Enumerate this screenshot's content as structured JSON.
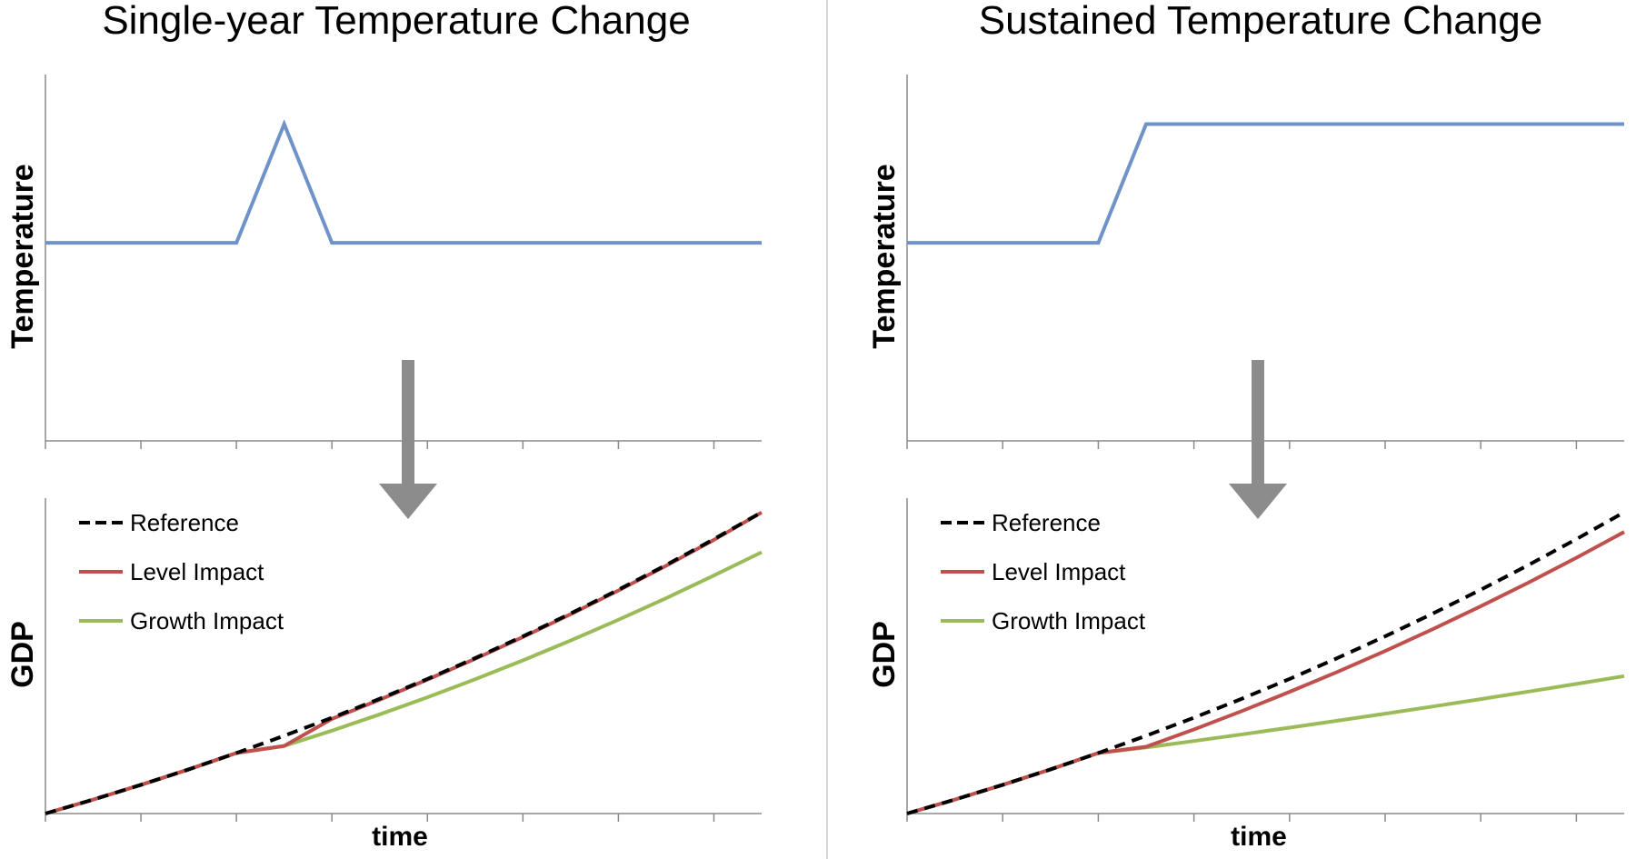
{
  "panels": [
    {
      "title": "Single-year Temperature Change",
      "temperature": {
        "ylabel": "Temperature",
        "x": [
          0,
          4,
          5,
          6,
          15
        ],
        "y": [
          1.0,
          1.0,
          1.6,
          1.0,
          1.0
        ],
        "color": "#6f93c9"
      },
      "gdp": {
        "ylabel": "GDP",
        "xlabel": "time",
        "x": [
          0,
          1,
          2,
          3,
          4,
          5,
          6,
          7,
          8,
          9,
          10,
          11,
          12,
          13,
          14,
          15
        ],
        "series": [
          {
            "name": "Reference",
            "color": "#000000",
            "dash": "12,8",
            "values": [
              0,
              0.93,
              1.91,
              2.94,
              4.03,
              5.18,
              6.38,
              7.64,
              8.96,
              10.35,
              11.8,
              13.32,
              14.9,
              16.55,
              18.27,
              20.06
            ]
          },
          {
            "name": "Level Impact",
            "color": "#c0504d",
            "dash": "",
            "values": [
              0,
              0.93,
              1.91,
              2.94,
              4.03,
              4.5,
              6.3,
              7.58,
              8.92,
              10.3,
              11.75,
              13.27,
              14.85,
              16.5,
              18.22,
              20.05
            ]
          },
          {
            "name": "Growth Impact",
            "color": "#9bbb59",
            "dash": "",
            "values": [
              0,
              0.93,
              1.91,
              2.94,
              4.03,
              4.5,
              5.52,
              6.6,
              7.74,
              8.94,
              10.2,
              11.52,
              12.9,
              14.34,
              15.85,
              17.4
            ]
          }
        ]
      }
    },
    {
      "title": "Sustained Temperature Change",
      "temperature": {
        "ylabel": "Temperature",
        "x": [
          0,
          4,
          5,
          15
        ],
        "y": [
          1.0,
          1.0,
          1.6,
          1.6
        ],
        "color": "#6f93c9"
      },
      "gdp": {
        "ylabel": "GDP",
        "xlabel": "time",
        "x": [
          0,
          1,
          2,
          3,
          4,
          5,
          6,
          7,
          8,
          9,
          10,
          11,
          12,
          13,
          14,
          15
        ],
        "series": [
          {
            "name": "Reference",
            "color": "#000000",
            "dash": "12,8",
            "values": [
              0,
              0.93,
              1.91,
              2.94,
              4.03,
              5.18,
              6.38,
              7.64,
              8.96,
              10.35,
              11.8,
              13.32,
              14.9,
              16.55,
              18.27,
              20.06
            ]
          },
          {
            "name": "Level Impact",
            "color": "#c0504d",
            "dash": "",
            "values": [
              0,
              0.93,
              1.91,
              2.94,
              4.03,
              4.45,
              5.6,
              6.82,
              8.1,
              9.43,
              10.82,
              12.28,
              13.8,
              15.38,
              17.03,
              18.75
            ]
          },
          {
            "name": "Growth Impact",
            "color": "#9bbb59",
            "dash": "",
            "values": [
              0,
              0.93,
              1.91,
              2.94,
              4.03,
              4.4,
              4.83,
              5.27,
              5.72,
              6.18,
              6.65,
              7.13,
              7.62,
              8.12,
              8.63,
              9.15
            ]
          }
        ]
      }
    }
  ],
  "arrow_color": "#8c8c8c",
  "chart_data": [
    {
      "type": "line",
      "title": "Single-year Temperature Change",
      "xlabel": "",
      "ylabel": "Temperature",
      "series": [
        {
          "values": [
            1.0,
            1.0,
            1.6,
            1.0,
            1.0
          ]
        }
      ],
      "x": [
        0,
        4,
        5,
        6,
        15
      ]
    },
    {
      "type": "line",
      "title": "",
      "xlabel": "time",
      "ylabel": "GDP",
      "legend": "top-left",
      "series": [
        "Reference",
        "Level Impact",
        "Growth Impact"
      ]
    },
    {
      "type": "line",
      "title": "Sustained Temperature Change",
      "xlabel": "",
      "ylabel": "Temperature",
      "series": [
        {
          "values": [
            1.0,
            1.0,
            1.6,
            1.6
          ]
        }
      ],
      "x": [
        0,
        4,
        5,
        15
      ]
    },
    {
      "type": "line",
      "title": "",
      "xlabel": "time",
      "ylabel": "GDP",
      "legend": "top-left",
      "series": [
        "Reference",
        "Level Impact",
        "Growth Impact"
      ]
    }
  ]
}
